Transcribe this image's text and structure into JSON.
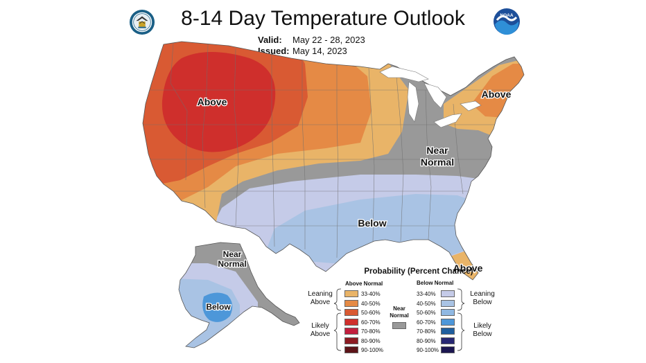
{
  "header": {
    "title": "8-14 Day Temperature Outlook",
    "valid_label": "Valid:",
    "valid_value": "May 22 - 28, 2023",
    "issued_label": "Issued:",
    "issued_value": "May 14, 2023"
  },
  "logos": {
    "left": "department-of-commerce-seal",
    "right": "noaa-logo",
    "right_text": "NOAA"
  },
  "map_labels": {
    "west": "Above",
    "northeast": "Above",
    "east_near_line1": "Near",
    "east_near_line2": "Normal",
    "south": "Below",
    "florida": "Above",
    "alaska_near_line1": "Near",
    "alaska_near_line2": "Normal",
    "alaska_below": "Below"
  },
  "legend": {
    "title": "Probability (Percent Chance)",
    "above_header": "Above Normal",
    "below_header": "Below Normal",
    "near_label_line1": "Near",
    "near_label_line2": "Normal",
    "leaning_above_1": "Leaning",
    "leaning_above_2": "Above",
    "likely_above_1": "Likely",
    "likely_above_2": "Above",
    "leaning_below_1": "Leaning",
    "leaning_below_2": "Below",
    "likely_below_1": "Likely",
    "likely_below_2": "Below",
    "above": [
      {
        "label": "33-40%",
        "color": "#e9b468"
      },
      {
        "label": "40-50%",
        "color": "#e58a45"
      },
      {
        "label": "50-60%",
        "color": "#d95a33"
      },
      {
        "label": "60-70%",
        "color": "#cf2f2c"
      },
      {
        "label": "70-80%",
        "color": "#c21f3e"
      },
      {
        "label": "80-90%",
        "color": "#8c1b22"
      },
      {
        "label": "90-100%",
        "color": "#5c1418"
      }
    ],
    "below": [
      {
        "label": "33-40%",
        "color": "#c5cbe8"
      },
      {
        "label": "40-50%",
        "color": "#a9c3e4"
      },
      {
        "label": "50-60%",
        "color": "#90b8e2"
      },
      {
        "label": "60-70%",
        "color": "#4d97d9"
      },
      {
        "label": "70-80%",
        "color": "#1f5e9e"
      },
      {
        "label": "80-90%",
        "color": "#272773"
      },
      {
        "label": "90-100%",
        "color": "#1b1650"
      }
    ],
    "near_color": "#999999"
  }
}
